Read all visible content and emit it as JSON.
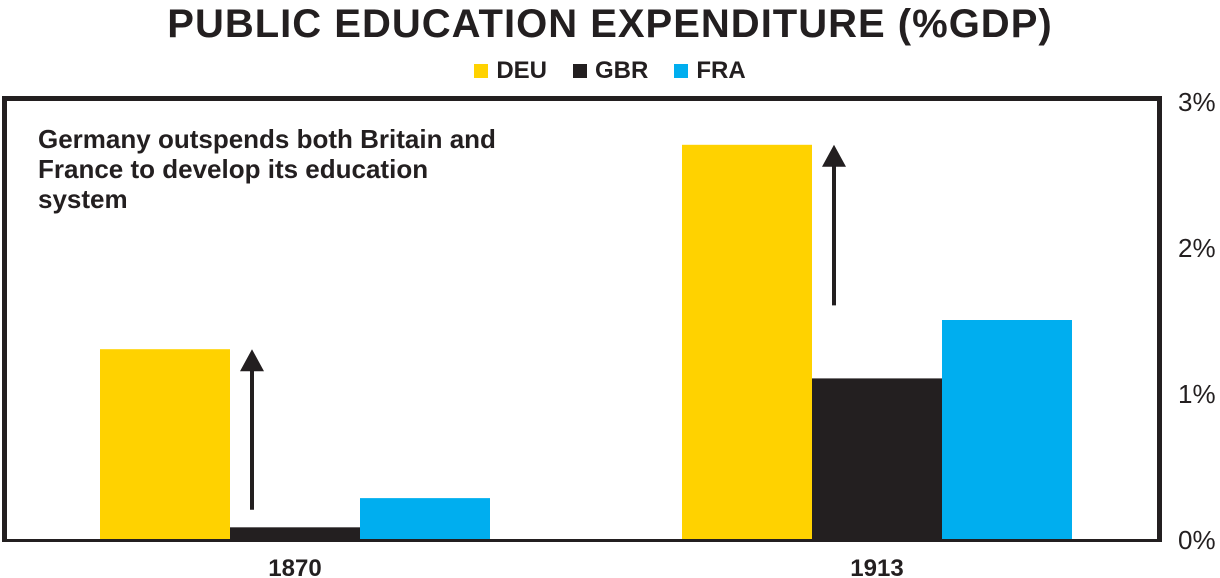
{
  "chart_data": {
    "type": "bar",
    "title": "PUBLIC EDUCATION EXPENDITURE (%GDP)",
    "categories": [
      "1870",
      "1913"
    ],
    "series": [
      {
        "name": "DEU",
        "color": "#ffd200",
        "values": [
          1.3,
          2.7
        ]
      },
      {
        "name": "GBR",
        "color": "#231f20",
        "values": [
          0.08,
          1.1
        ]
      },
      {
        "name": "FRA",
        "color": "#00aeef",
        "values": [
          0.28,
          1.5
        ]
      }
    ],
    "ylim": [
      0,
      3
    ],
    "yticks": [
      0,
      1,
      2,
      3
    ],
    "ytick_labels": [
      "0%",
      "1%",
      "2%",
      "3%"
    ],
    "yaxis_position": "right",
    "legend_position": "top-center",
    "grid": false,
    "annotation": "Germany outspends both Britain and France to develop its education system",
    "arrows": [
      {
        "category": "1870",
        "from": 0.2,
        "to": 1.3
      },
      {
        "category": "1913",
        "from": 1.6,
        "to": 2.7
      }
    ]
  }
}
